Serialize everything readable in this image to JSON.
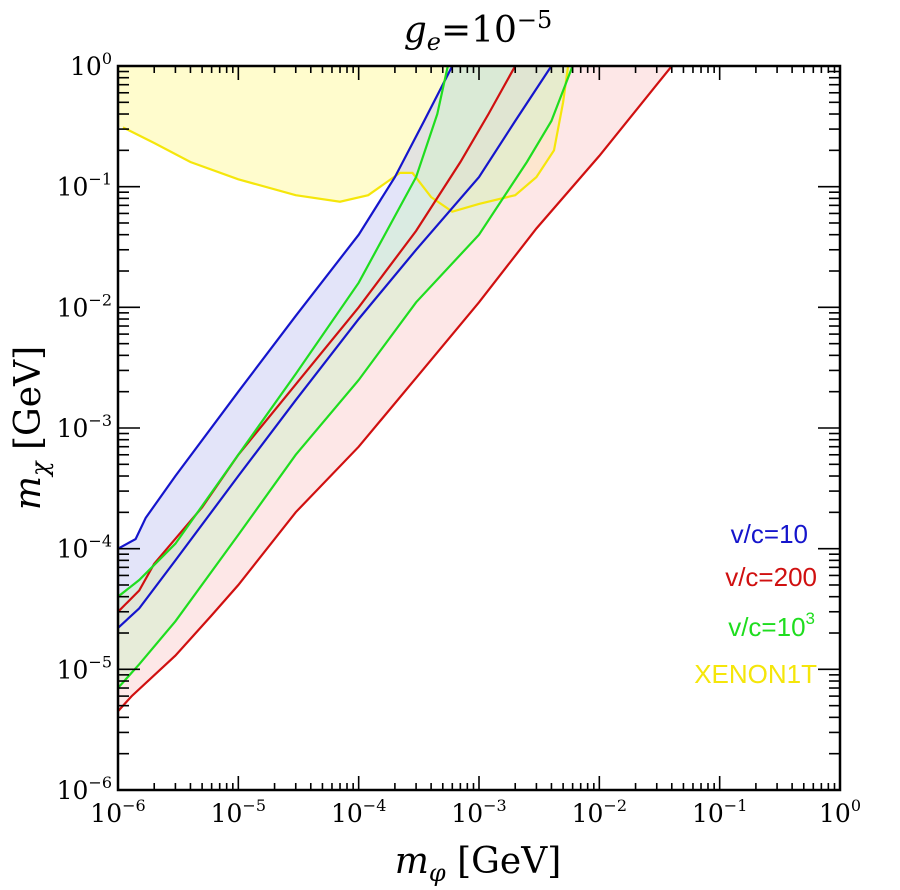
{
  "chart_data": {
    "type": "area",
    "title": {
      "base": "g",
      "sub": "e",
      "eq": "=10",
      "sup": "−5"
    },
    "xlabel": {
      "base": "m",
      "sub": "φ",
      "unit": " [GeV]"
    },
    "ylabel": {
      "base": "m",
      "sub": "χ",
      "unit": " [GeV]"
    },
    "xscale": "log",
    "yscale": "log",
    "xlim": [
      1e-06,
      1
    ],
    "ylim": [
      1e-06,
      1
    ],
    "xticks": [
      {
        "base": "10",
        "exp": "−6"
      },
      {
        "base": "10",
        "exp": "−5"
      },
      {
        "base": "10",
        "exp": "−4"
      },
      {
        "base": "10",
        "exp": "−3"
      },
      {
        "base": "10",
        "exp": "−2"
      },
      {
        "base": "10",
        "exp": "−1"
      },
      {
        "base": "10",
        "exp": "0"
      }
    ],
    "yticks": [
      {
        "base": "10",
        "exp": "−6"
      },
      {
        "base": "10",
        "exp": "−5"
      },
      {
        "base": "10",
        "exp": "−4"
      },
      {
        "base": "10",
        "exp": "−3"
      },
      {
        "base": "10",
        "exp": "−2"
      },
      {
        "base": "10",
        "exp": "−1"
      },
      {
        "base": "10",
        "exp": "0"
      }
    ],
    "legend_position": "lower-right",
    "series": [
      {
        "name": "XENON1T",
        "legend": {
          "text": "XENON1T"
        },
        "color": "#f5e60a",
        "fill": "#fffbc4",
        "region": "above-curve",
        "line": [
          [
            1.1e-06,
            0.31
          ],
          [
            2e-06,
            0.23
          ],
          [
            4e-06,
            0.16
          ],
          [
            1e-05,
            0.115
          ],
          [
            3e-05,
            0.085
          ],
          [
            7e-05,
            0.075
          ],
          [
            0.00012,
            0.085
          ],
          [
            0.00022,
            0.13
          ],
          [
            0.00028,
            0.13
          ],
          [
            0.0004,
            0.082
          ],
          [
            0.0006,
            0.062
          ],
          [
            0.001,
            0.072
          ],
          [
            0.002,
            0.085
          ],
          [
            0.003,
            0.12
          ],
          [
            0.0042,
            0.2
          ],
          [
            0.005,
            0.5
          ],
          [
            0.0055,
            1.0
          ]
        ]
      },
      {
        "name": "v/c=10",
        "legend": {
          "text": "v/c=10"
        },
        "color": "#1515cc",
        "fill": "#c8caf4",
        "upper": [
          [
            1e-06,
            0.0001
          ],
          [
            1.4e-06,
            0.00012
          ],
          [
            1.7e-06,
            0.00018
          ],
          [
            3e-06,
            0.0004
          ],
          [
            1e-05,
            0.002
          ],
          [
            3e-05,
            0.0085
          ],
          [
            0.0001,
            0.04
          ],
          [
            0.0002,
            0.12
          ],
          [
            0.00035,
            0.35
          ],
          [
            0.0006,
            1.0
          ]
        ],
        "lower": [
          [
            1e-06,
            2.2e-05
          ],
          [
            1.5e-06,
            3.2e-05
          ],
          [
            3e-06,
            8e-05
          ],
          [
            1e-05,
            0.0004
          ],
          [
            3e-05,
            0.0017
          ],
          [
            0.0001,
            0.008
          ],
          [
            0.0003,
            0.03
          ],
          [
            0.001,
            0.12
          ],
          [
            0.002,
            0.35
          ],
          [
            0.004,
            1.0
          ]
        ]
      },
      {
        "name": "v/c=200",
        "legend": {
          "text": "v/c=200"
        },
        "color": "#d01010",
        "fill": "#fcd0d0",
        "upper": [
          [
            1e-06,
            3e-05
          ],
          [
            1.5e-06,
            4.5e-05
          ],
          [
            2e-06,
            7.5e-05
          ],
          [
            5e-06,
            0.00022
          ],
          [
            1e-05,
            0.0006
          ],
          [
            3e-05,
            0.0023
          ],
          [
            0.0001,
            0.01
          ],
          [
            0.0003,
            0.043
          ],
          [
            0.0007,
            0.16
          ],
          [
            0.0012,
            0.4
          ],
          [
            0.002,
            1.0
          ]
        ],
        "lower": [
          [
            1e-06,
            4.5e-06
          ],
          [
            1.3e-06,
            6e-06
          ],
          [
            3e-06,
            1.3e-05
          ],
          [
            6e-06,
            2.8e-05
          ],
          [
            1e-05,
            5e-05
          ],
          [
            3e-05,
            0.0002
          ],
          [
            0.0001,
            0.0007
          ],
          [
            0.0003,
            0.0026
          ],
          [
            0.001,
            0.011
          ],
          [
            0.003,
            0.045
          ],
          [
            0.01,
            0.18
          ],
          [
            0.03,
            0.7
          ],
          [
            0.04,
            1.0
          ]
        ]
      },
      {
        "name": "v/c=10^3",
        "legend": {
          "text": "v/c=10",
          "sup": "3"
        },
        "color": "#1fdd1f",
        "fill": "#d2f2cc",
        "upper": [
          [
            1e-06,
            4e-05
          ],
          [
            1.5e-06,
            5.5e-05
          ],
          [
            3e-06,
            0.00011
          ],
          [
            1e-05,
            0.0006
          ],
          [
            3e-05,
            0.0028
          ],
          [
            0.0001,
            0.016
          ],
          [
            0.0003,
            0.12
          ],
          [
            0.00045,
            0.4
          ],
          [
            0.00055,
            1.0
          ]
        ],
        "lower": [
          [
            1e-06,
            7e-06
          ],
          [
            1.5e-06,
            1.1e-05
          ],
          [
            3e-06,
            2.5e-05
          ],
          [
            1e-05,
            0.00013
          ],
          [
            3e-05,
            0.0006
          ],
          [
            0.0001,
            0.0025
          ],
          [
            0.0003,
            0.011
          ],
          [
            0.001,
            0.04
          ],
          [
            0.0025,
            0.16
          ],
          [
            0.004,
            0.35
          ],
          [
            0.006,
            1.0
          ]
        ]
      }
    ]
  }
}
